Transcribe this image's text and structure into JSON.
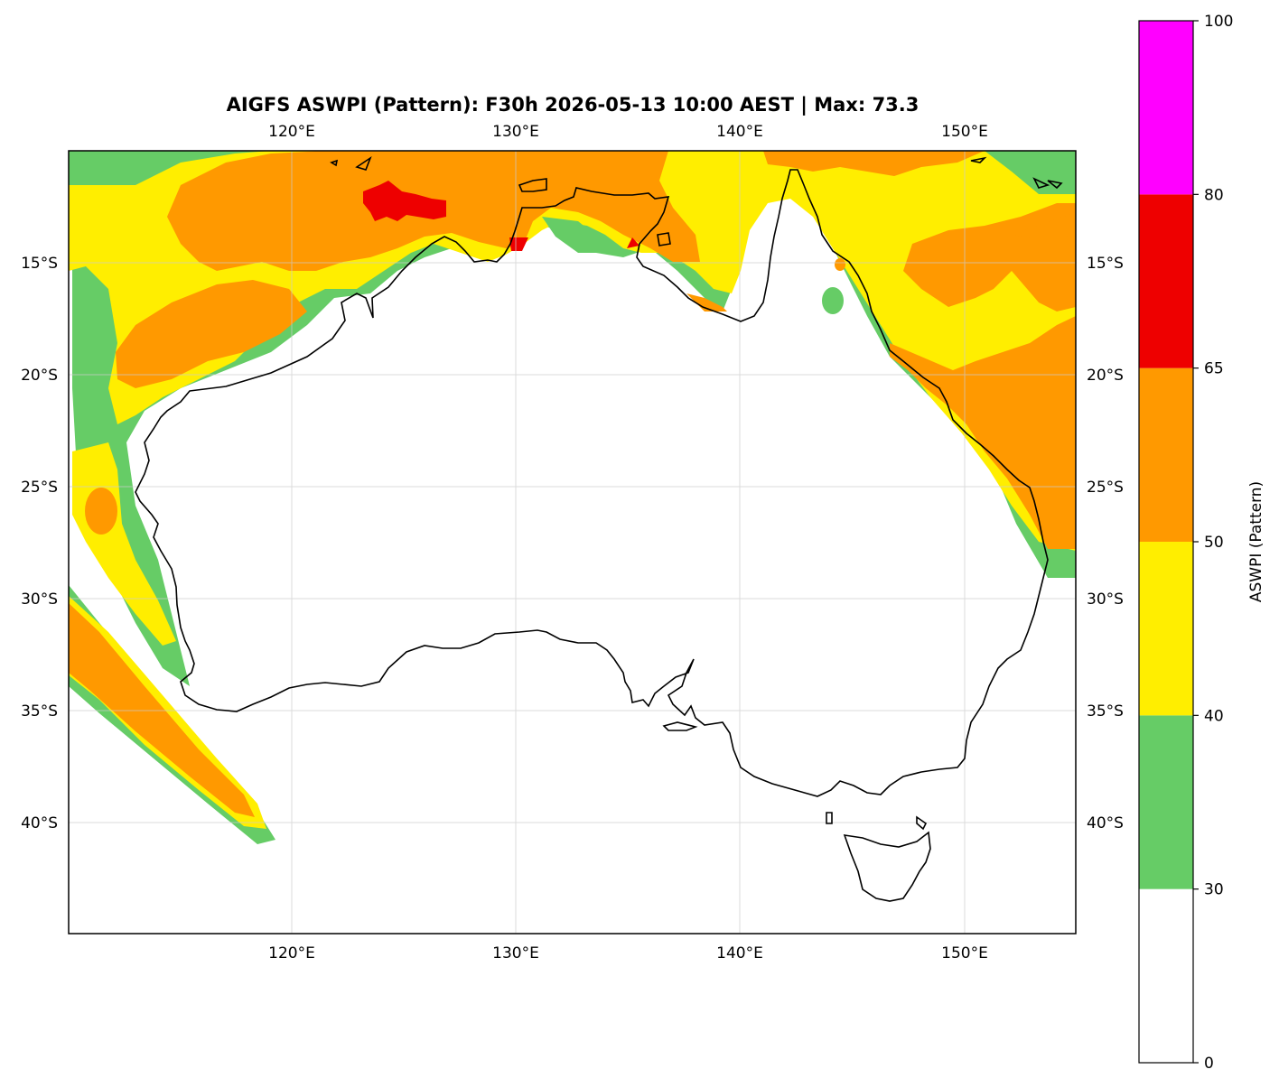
{
  "title": "AIGFS ASWPI (Pattern): F30h 2026-05-13 10:00 AEST | Max: 73.3",
  "map": {
    "lon_labels": [
      "120°E",
      "130°E",
      "140°E",
      "150°E"
    ],
    "lat_labels": [
      "15°S",
      "20°S",
      "25°S",
      "30°S",
      "35°S",
      "40°S"
    ],
    "gridlines": true
  },
  "colorbar": {
    "label": "ASWPI (Pattern)",
    "ticks": [
      "0",
      "30",
      "40",
      "50",
      "65",
      "80",
      "100"
    ],
    "bins": [
      {
        "from": 0,
        "to": 30,
        "color": "#ffffff"
      },
      {
        "from": 30,
        "to": 40,
        "color": "#66cc66"
      },
      {
        "from": 40,
        "to": 50,
        "color": "#ffee00"
      },
      {
        "from": 50,
        "to": 65,
        "color": "#ff9900"
      },
      {
        "from": 65,
        "to": 80,
        "color": "#ee0000"
      },
      {
        "from": 80,
        "to": 100,
        "color": "#ff00ff"
      }
    ]
  },
  "chart_data": {
    "type": "heatmap",
    "title": "AIGFS ASWPI (Pattern): F30h 2026-05-13 10:00 AEST | Max: 73.3",
    "x_ticks": [
      "120°E",
      "130°E",
      "140°E",
      "150°E"
    ],
    "y_ticks": [
      "15°S",
      "20°S",
      "25°S",
      "30°S",
      "35°S",
      "40°S"
    ],
    "lon_range": [
      110,
      155
    ],
    "lat_range": [
      -45,
      -10
    ],
    "max_value": 73.3,
    "colorbar_label": "ASWPI (Pattern)",
    "levels": [
      0,
      30,
      40,
      50,
      65,
      80,
      100
    ]
  }
}
